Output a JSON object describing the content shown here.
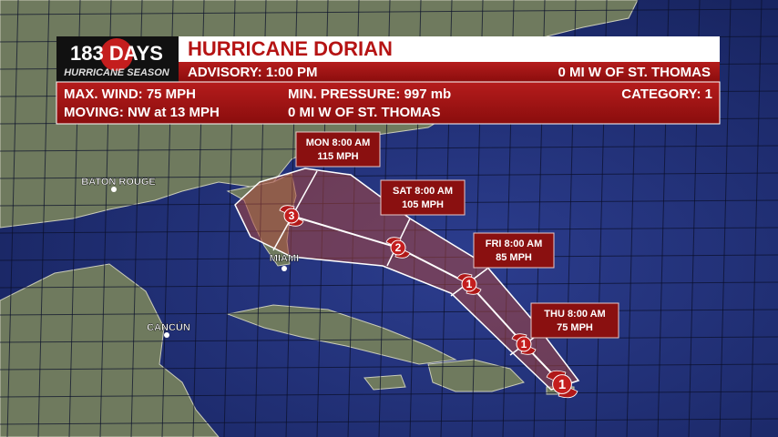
{
  "logo": {
    "number": "183",
    "word": "DAYS",
    "tagline": "HURRICANE SEASON"
  },
  "banner": {
    "title": "HURRICANE DORIAN",
    "advisory": "ADVISORY: 1:00 PM",
    "location": "0 MI W OF ST. THOMAS",
    "max_wind": "MAX. WIND: 75 MPH",
    "min_pressure": "MIN. PRESSURE:  997 mb",
    "category": "CATEGORY: 1",
    "moving": "MOVING: NW at 13 MPH",
    "position": "0 MI W OF ST. THOMAS"
  },
  "cities": [
    {
      "name": "BATON ROUGE"
    },
    {
      "name": "MIAMI"
    },
    {
      "name": "CANCÚN"
    }
  ],
  "track_markers": [
    {
      "category": "1"
    },
    {
      "category": "1"
    },
    {
      "category": "1"
    },
    {
      "category": "2"
    },
    {
      "category": "3"
    }
  ],
  "forecast_labels": [
    {
      "time": "THU 8:00 AM",
      "wind": "75 MPH"
    },
    {
      "time": "FRI 8:00 AM",
      "wind": "85 MPH"
    },
    {
      "time": "SAT 8:00 AM",
      "wind": "105 MPH"
    },
    {
      "time": "MON 8:00 AM",
      "wind": "115 MPH"
    }
  ]
}
